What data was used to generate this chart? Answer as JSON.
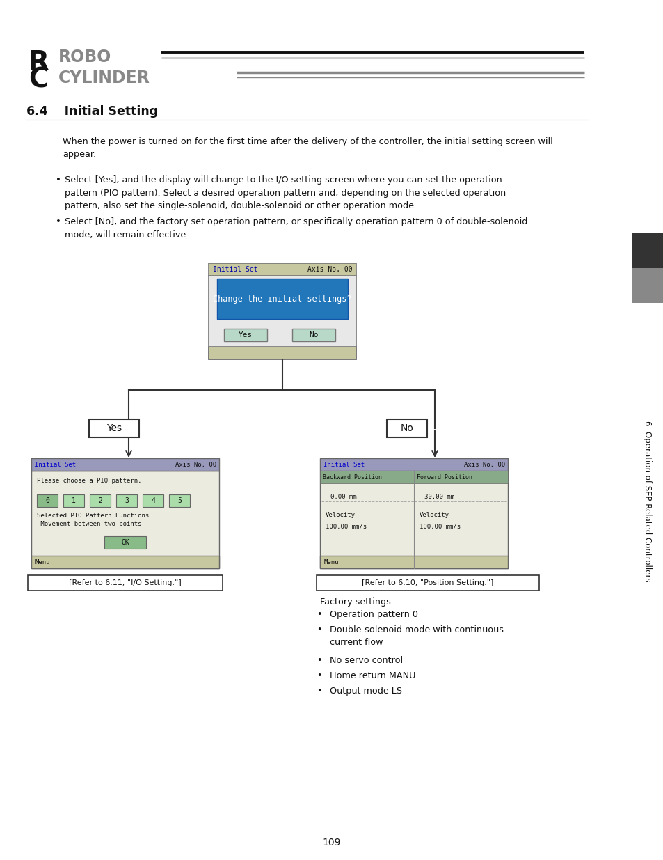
{
  "page_bg": "#ffffff",
  "section_title": "6.4    Initial Setting",
  "body_text1": "When the power is turned on for the first time after the delivery of the controller, the initial setting screen will\nappear.",
  "bullet1": "Select [Yes], and the display will change to the I/O setting screen where you can set the operation\npattern (PIO pattern). Select a desired operation pattern and, depending on the selected operation\npattern, also set the single-solenoid, double-solenoid or other operation mode.",
  "bullet2": "Select [No], and the factory set operation pattern, or specifically operation pattern 0 of double-solenoid\nmode, will remain effective.",
  "sidebar_text": "6. Operation of SEP Related Controllers",
  "page_number": "109",
  "screen_title": "Initial Set",
  "screen_axis": "Axis No. 00",
  "screen_question": "Change the initial settings?",
  "screen_yes": "Yes",
  "screen_no": "No",
  "left_screen_title": "Initial Set",
  "left_screen_axis": "Axis No. 00",
  "left_screen_text1": "Please choose a PIO pattern.",
  "left_screen_buttons": [
    "0",
    "1",
    "2",
    "3",
    "4",
    "5"
  ],
  "left_screen_text2a": "Selected PIO Pattern Functions",
  "left_screen_text2b": "-Movement between two points",
  "left_screen_ok": "OK",
  "left_screen_menu": "Menu",
  "left_ref": "[Refer to 6.11, \"I/O Setting.\"]",
  "right_screen_title": "Initial Set",
  "right_screen_axis": "Axis No. 00",
  "right_screen_col1": "Backward Position",
  "right_screen_col2": "Forward Position",
  "right_screen_val1": "0.00 mm",
  "right_screen_val2": "30.00 mm",
  "right_screen_vel1": "Velocity",
  "right_screen_vel2": "Velocity",
  "right_screen_velval1": "100.00 mm/s",
  "right_screen_velval2": "100.00 mm/s",
  "right_screen_menu": "Menu",
  "right_ref": "[Refer to 6.10, \"Position Setting.\"]",
  "factory_title": "Factory settings",
  "factory_bullets": [
    "Operation pattern 0",
    "Double-solenoid mode with continuous\ncurrent flow",
    "No servo control",
    "Home return MANU",
    "Output mode LS"
  ],
  "yes_label": "Yes",
  "no_label": "No"
}
